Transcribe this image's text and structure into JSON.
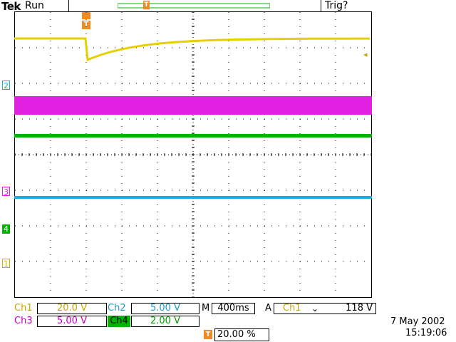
{
  "header": {
    "brand": "Tek",
    "run_state": "Run",
    "trigger_status": "Trig?"
  },
  "colors": {
    "ch1": "#e6d000",
    "ch2": "#22aadd",
    "ch3": "#e020e0",
    "ch4": "#00b400",
    "trigger": "#f08a24",
    "grid": "#000000"
  },
  "markers": {
    "ch1": "1",
    "ch2": "2",
    "ch3": "3",
    "ch4": "4",
    "trigger_glyph": "T",
    "trigger_level_glyph": "◂",
    "record_glyph": "T"
  },
  "channels": {
    "ch1": {
      "label": "Ch1",
      "scale": "20.0 V"
    },
    "ch2": {
      "label": "Ch2",
      "scale": "5.00 V"
    },
    "ch3": {
      "label": "Ch3",
      "scale": "5.00 V"
    },
    "ch4": {
      "label": "Ch4",
      "scale": "2.00 V"
    }
  },
  "timebase": {
    "prefix": "M",
    "value": "400ms"
  },
  "trigger": {
    "mode": "A",
    "source": "Ch1",
    "slope_icon": "falling-edge-icon",
    "slope_glyph": "⌄",
    "level": "118 V",
    "position_glyph": "T",
    "position": "20.00 %"
  },
  "datetime": {
    "date": "7 May 2002",
    "time": "15:19:06"
  }
}
